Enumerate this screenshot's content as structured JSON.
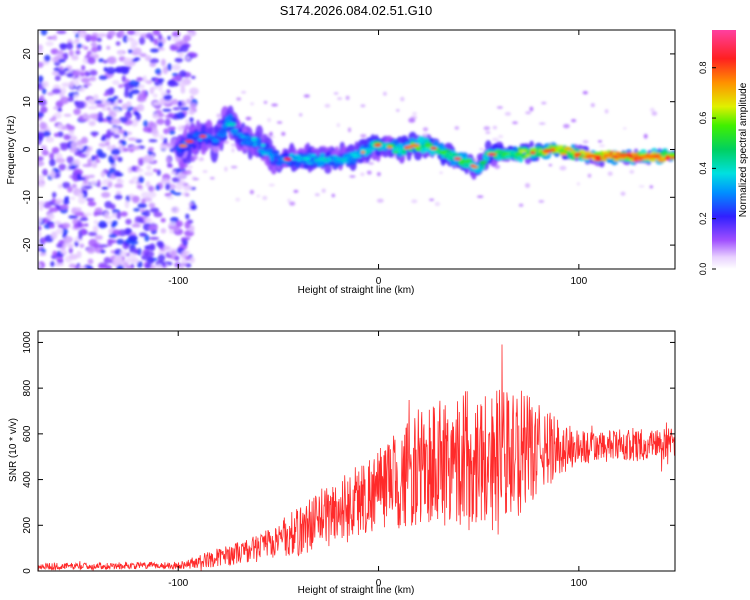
{
  "figure_title": "S174.2026.084.02.51.G10",
  "colors": {
    "snr_line": "#ff2a2a",
    "background": "#ffffff",
    "axis": "#000000"
  },
  "colorbar": {
    "label": "Normalized spectral amplitude",
    "ticks": [
      "0.0",
      "0.2",
      "0.4",
      "0.6",
      "0.8"
    ],
    "tick_values": [
      0.0,
      0.2,
      0.4,
      0.6,
      0.8
    ],
    "range": [
      0.0,
      0.95
    ]
  },
  "chart_data": [
    {
      "type": "heatmap",
      "title": "",
      "xlabel": "Height of straight line (km)",
      "ylabel": "Frequency (Hz)",
      "xlim": [
        -170,
        148
      ],
      "ylim": [
        -25,
        25
      ],
      "xticks": [
        -100,
        0,
        100
      ],
      "xtick_labels": [
        "-100",
        "0",
        "100"
      ],
      "yticks": [
        -20,
        -10,
        0,
        10,
        20
      ],
      "ytick_labels": [
        "-20",
        "-10",
        "0",
        "10",
        "20"
      ],
      "noise_region_x": [
        -170,
        -98
      ],
      "ridge": {
        "x": [
          -100,
          -90,
          -80,
          -75,
          -70,
          -60,
          -50,
          -40,
          -30,
          -20,
          -10,
          0,
          10,
          20,
          30,
          40,
          45,
          50,
          55,
          60,
          70,
          80,
          90,
          100,
          110,
          120,
          130,
          140,
          148
        ],
        "freq": [
          0,
          3,
          2,
          6,
          3,
          1,
          -2,
          -2,
          -2,
          -2,
          -1,
          1,
          0,
          1,
          0,
          -2,
          -3,
          -4,
          -1,
          -1,
          -1,
          -0.5,
          0,
          -1,
          -1.5,
          -1.5,
          -1.5,
          -1.5,
          -1.5
        ],
        "amplitude": [
          0.3,
          0.35,
          0.3,
          0.45,
          0.35,
          0.4,
          0.35,
          0.4,
          0.45,
          0.4,
          0.45,
          0.5,
          0.55,
          0.6,
          0.6,
          0.55,
          0.6,
          0.5,
          0.55,
          0.6,
          0.65,
          0.7,
          0.75,
          0.8,
          0.85,
          0.85,
          0.9,
          0.9,
          0.85
        ],
        "spread_hz": [
          3.5,
          3.5,
          3.5,
          3,
          3,
          2.8,
          2.6,
          2.5,
          2.4,
          2.3,
          2.2,
          2.2,
          2.1,
          2.1,
          2,
          2,
          2,
          2,
          1.9,
          1.8,
          1.6,
          1.5,
          1.4,
          1.3,
          1.2,
          1.2,
          1.1,
          1.1,
          1.1
        ]
      }
    },
    {
      "type": "line",
      "title": "",
      "xlabel": "Height of straight line (km)",
      "ylabel": "SNR (10 * v/v)",
      "xlim": [
        -170,
        148
      ],
      "ylim": [
        0,
        1050
      ],
      "xticks": [
        -100,
        0,
        100
      ],
      "xtick_labels": [
        "-100",
        "0",
        "100"
      ],
      "yticks": [
        0,
        200,
        400,
        600,
        800,
        1000
      ],
      "ytick_labels": [
        "0",
        "200",
        "400",
        "600",
        "800",
        "1000"
      ],
      "envelope": {
        "x": [
          -170,
          -100,
          -90,
          -80,
          -70,
          -60,
          -50,
          -40,
          -30,
          -20,
          -10,
          0,
          10,
          20,
          30,
          40,
          50,
          60,
          70,
          80,
          90,
          100,
          110,
          120,
          130,
          140,
          148
        ],
        "mean": [
          20,
          25,
          40,
          60,
          80,
          100,
          140,
          170,
          230,
          260,
          310,
          360,
          400,
          450,
          480,
          500,
          510,
          480,
          520,
          530,
          540,
          540,
          540,
          550,
          550,
          560,
          550
        ],
        "amplitude": [
          15,
          15,
          30,
          40,
          50,
          60,
          80,
          110,
          130,
          150,
          170,
          180,
          220,
          260,
          300,
          300,
          300,
          330,
          280,
          200,
          130,
          80,
          70,
          70,
          70,
          70,
          70
        ]
      }
    }
  ]
}
